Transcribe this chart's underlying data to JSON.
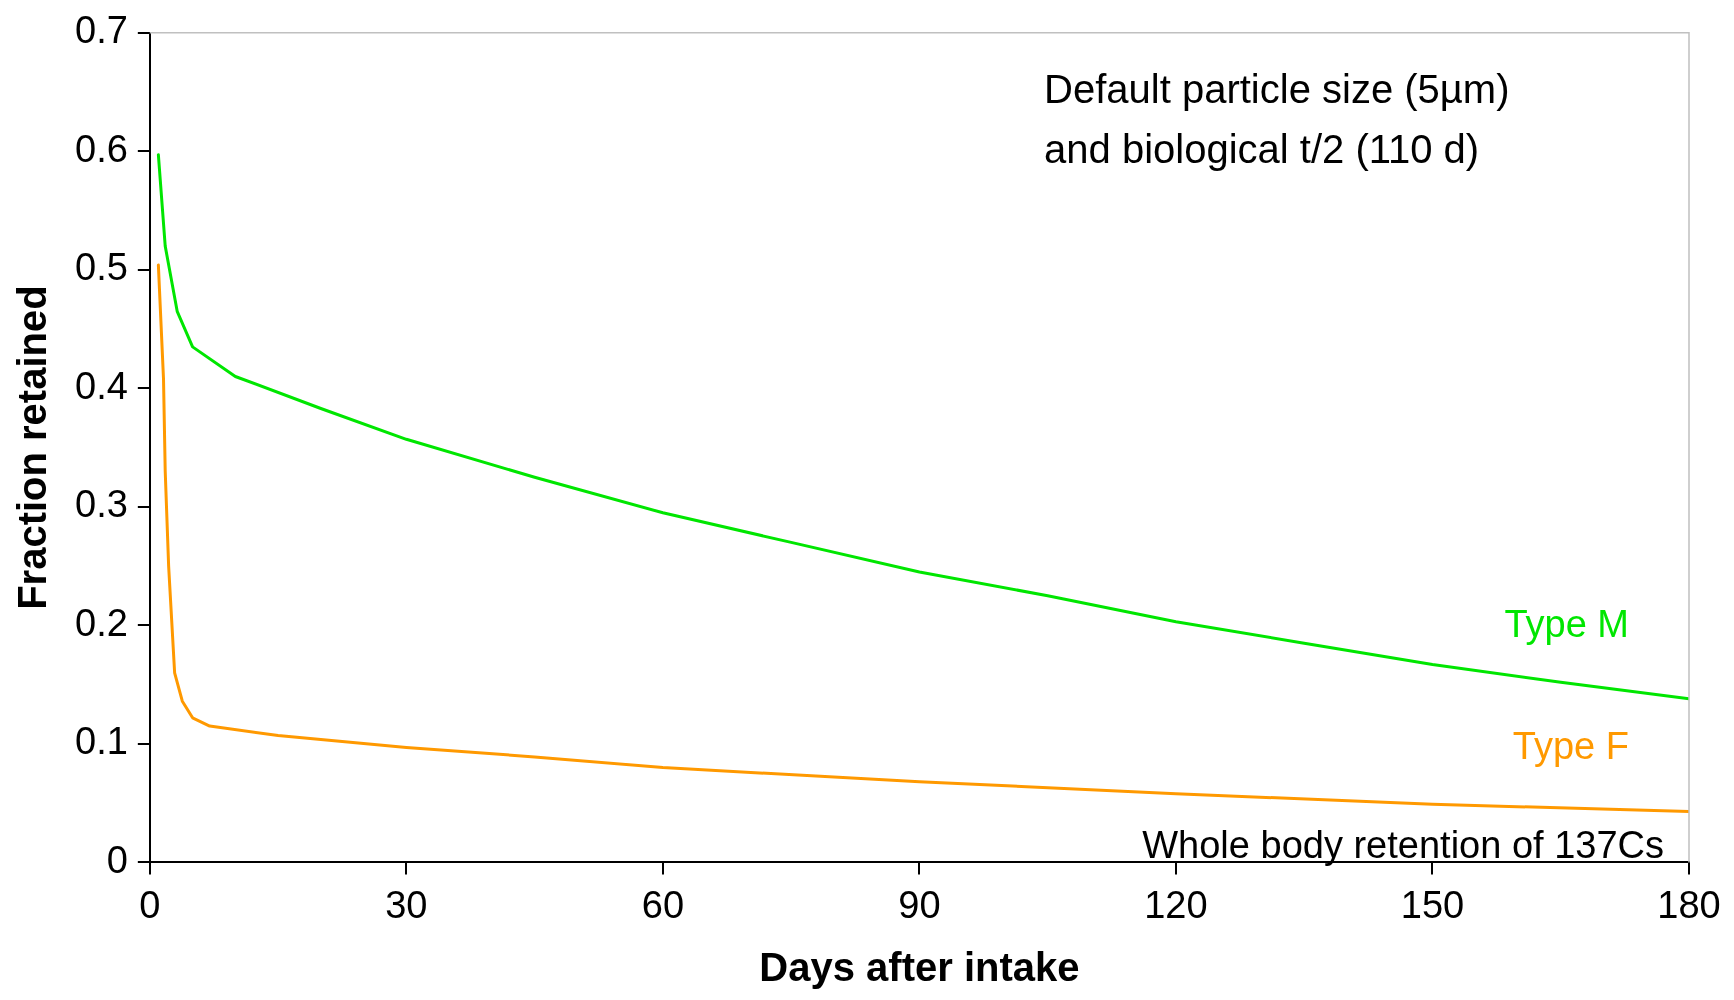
{
  "chart_data": {
    "type": "line",
    "xlabel": "Days after intake",
    "ylabel": "Fraction retained",
    "xlim": [
      0,
      180
    ],
    "xticks": [
      0,
      30,
      60,
      90,
      120,
      150,
      180
    ],
    "ylim": [
      0,
      0.7
    ],
    "yticks": [
      0,
      0.1,
      0.2,
      0.3,
      0.4,
      0.5,
      0.6,
      0.7
    ],
    "grid": false,
    "legend": false,
    "marker": "none",
    "line_style": "solid",
    "annotations": [
      "Default particle size (5µm)",
      "and biological t/2 (110 d)",
      "Whole body retention of 137Cs"
    ],
    "series": [
      {
        "name": "Type M",
        "color": "#00e600",
        "x": [
          1,
          1.8,
          3.2,
          5,
          10,
          20,
          30,
          45,
          60,
          75,
          90,
          105,
          120,
          135,
          150,
          165,
          180
        ],
        "values": [
          0.597,
          0.52,
          0.465,
          0.435,
          0.41,
          0.383,
          0.357,
          0.325,
          0.295,
          0.27,
          0.245,
          0.225,
          0.203,
          0.185,
          0.167,
          0.152,
          0.138
        ]
      },
      {
        "name": "Type F",
        "color": "#ff9900",
        "x": [
          1,
          1.6,
          1.8,
          2.2,
          2.9,
          3.8,
          5,
          7,
          15,
          30,
          45,
          60,
          90,
          120,
          150,
          180
        ],
        "values": [
          0.504,
          0.408,
          0.33,
          0.25,
          0.16,
          0.136,
          0.122,
          0.115,
          0.107,
          0.097,
          0.089,
          0.08,
          0.068,
          0.058,
          0.049,
          0.043
        ]
      }
    ]
  }
}
